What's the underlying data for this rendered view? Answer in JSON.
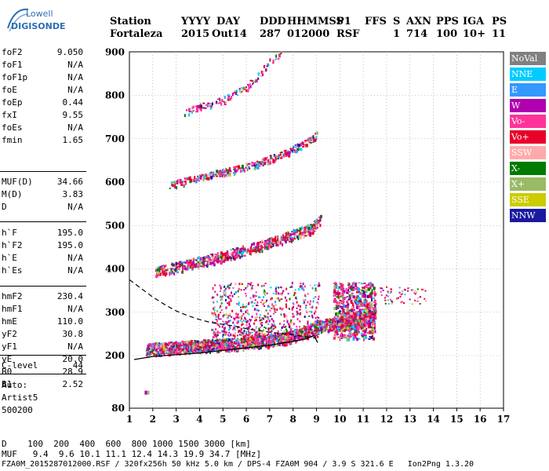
{
  "logo": {
    "line1": "Lowell",
    "line2": "DIGISONDE"
  },
  "header": {
    "labels": [
      "Station",
      "YYYY",
      "DAY",
      "DDD",
      "HHMMSS",
      "P1",
      "FFS",
      "S",
      "AXN",
      "PPS",
      "IGA",
      "PS"
    ],
    "values": [
      "Fortaleza",
      "2015",
      "Out14",
      "287",
      "012000",
      "RSF",
      "1",
      "714",
      "100",
      "10+",
      "11"
    ]
  },
  "params": {
    "group1": [
      {
        "name": "foF2",
        "value": "9.050"
      },
      {
        "name": "foF1",
        "value": "N/A"
      },
      {
        "name": "foF1p",
        "value": "N/A"
      },
      {
        "name": "foE",
        "value": "N/A"
      },
      {
        "name": "foEp",
        "value": "0.44"
      },
      {
        "name": "fxI",
        "value": "9.55"
      },
      {
        "name": "foEs",
        "value": "N/A"
      },
      {
        "name": "fmin",
        "value": "1.65"
      }
    ],
    "group2": [
      {
        "name": "MUF(D)",
        "value": "34.66"
      },
      {
        "name": "M(D)",
        "value": "3.83"
      },
      {
        "name": "D",
        "value": "N/A"
      }
    ],
    "group3": [
      {
        "name": "h`F",
        "value": "195.0"
      },
      {
        "name": "h`F2",
        "value": "195.0"
      },
      {
        "name": "h`E",
        "value": "N/A"
      },
      {
        "name": "h`Es",
        "value": "N/A"
      }
    ],
    "group4": [
      {
        "name": "hmF2",
        "value": "230.4"
      },
      {
        "name": "hmF1",
        "value": "N/A"
      },
      {
        "name": "hmE",
        "value": "110.0"
      },
      {
        "name": "yF2",
        "value": "30.8"
      },
      {
        "name": "yF1",
        "value": "N/A"
      },
      {
        "name": "yE",
        "value": "20.0"
      },
      {
        "name": "B0",
        "value": "28.9"
      },
      {
        "name": "B1",
        "value": "2.52"
      }
    ],
    "group5": [
      {
        "name": "C-level",
        "value": "44"
      }
    ]
  },
  "auto": {
    "line1": "Auto:",
    "line2": "Artist5",
    "line3": "500200"
  },
  "footer": {
    "d_line": "D    100  200  400  600  800 1000 1500 3000 [km]",
    "muf_line": "MUF   9.4  9.6 10.1 11.1 12.4 14.3 19.9 34.7 [MHz]",
    "file_line": "FZA0M_2015287012000.RSF / 320fx256h 50 kHz 5.0 km / DPS-4 FZA0M 904 / 3.9 S 321.6 E   Ion2Png 1.3.20"
  },
  "legend": [
    {
      "label": "NoVal",
      "color": "#808080",
      "text_color": "#ffffff"
    },
    {
      "label": "NNE",
      "color": "#00ccff",
      "text_color": "#ffffff"
    },
    {
      "label": "E",
      "color": "#3399ff",
      "text_color": "#ffffff"
    },
    {
      "label": "W",
      "color": "#b000b0",
      "text_color": "#ffffff"
    },
    {
      "label": "Vo-",
      "color": "#ff3399",
      "text_color": "#ffffff"
    },
    {
      "label": "Vo+",
      "color": "#e8002a",
      "text_color": "#ffffff"
    },
    {
      "label": "SSW",
      "color": "#ffaaaa",
      "text_color": "#ffffff"
    },
    {
      "label": "X-",
      "color": "#007a00",
      "text_color": "#ffffff"
    },
    {
      "label": "X+",
      "color": "#99bb66",
      "text_color": "#ffffff"
    },
    {
      "label": "SSE",
      "color": "#cccc00",
      "text_color": "#ffffff"
    },
    {
      "label": "NNW",
      "color": "#1a1aa0",
      "text_color": "#ffffff"
    }
  ],
  "chart_data": {
    "type": "scatter",
    "title": "",
    "xlabel": "",
    "ylabel": "",
    "x_ticks": [
      1,
      2,
      3,
      4,
      5,
      6,
      7,
      8,
      9,
      10,
      11,
      12,
      13,
      14,
      15,
      16,
      17
    ],
    "y_ticks": [
      80,
      200,
      300,
      400,
      500,
      600,
      700,
      800,
      900
    ],
    "xlim": [
      1,
      17
    ],
    "ylim": [
      80,
      900
    ],
    "y_scale": "piecewise",
    "grid": true,
    "traces": [
      {
        "name": "F-trace 1st hop",
        "x": [
          1.7,
          2.5,
          3.5,
          4.5,
          5.5,
          6.5,
          7.5,
          8.3,
          8.8,
          9.0,
          9.5,
          10.2,
          11.0,
          11.5
        ],
        "h": [
          215,
          218,
          222,
          225,
          228,
          232,
          240,
          250,
          262,
          270,
          272,
          275,
          285,
          300
        ]
      },
      {
        "name": "F-trace 2nd hop",
        "x": [
          2.1,
          3.0,
          4.0,
          5.0,
          6.0,
          7.0,
          8.0,
          8.8,
          9.2
        ],
        "h": [
          395,
          405,
          418,
          430,
          445,
          462,
          480,
          495,
          520
        ]
      },
      {
        "name": "F-trace 3rd hop",
        "x": [
          2.7,
          3.5,
          4.5,
          5.5,
          6.5,
          7.5,
          8.5,
          9.0
        ],
        "h": [
          595,
          605,
          618,
          630,
          645,
          665,
          690,
          710
        ]
      },
      {
        "name": "F-trace 4th hop",
        "x": [
          3.3,
          4.0,
          5.0,
          5.6,
          6.0,
          6.5,
          7.0,
          7.5
        ],
        "h": [
          760,
          775,
          790,
          810,
          820,
          848,
          880,
          895
        ]
      }
    ],
    "profile": {
      "solid": {
        "x": [
          1.2,
          2.0,
          3.0,
          4.0,
          5.0,
          6.0,
          7.0,
          8.0,
          8.5,
          8.9,
          9.05
        ],
        "h": [
          191,
          198,
          202,
          206,
          212,
          218,
          224,
          233,
          238,
          246,
          230
        ]
      },
      "dashed": {
        "x": [
          1.0,
          1.5,
          2.0,
          2.5,
          3.0,
          3.5,
          4.0,
          4.5,
          5.0,
          5.5,
          6.0,
          7.0,
          8.0,
          9.0
        ],
        "h": [
          375,
          355,
          335,
          318,
          303,
          292,
          283,
          276,
          272,
          268,
          262,
          254,
          248,
          240
        ]
      }
    }
  }
}
